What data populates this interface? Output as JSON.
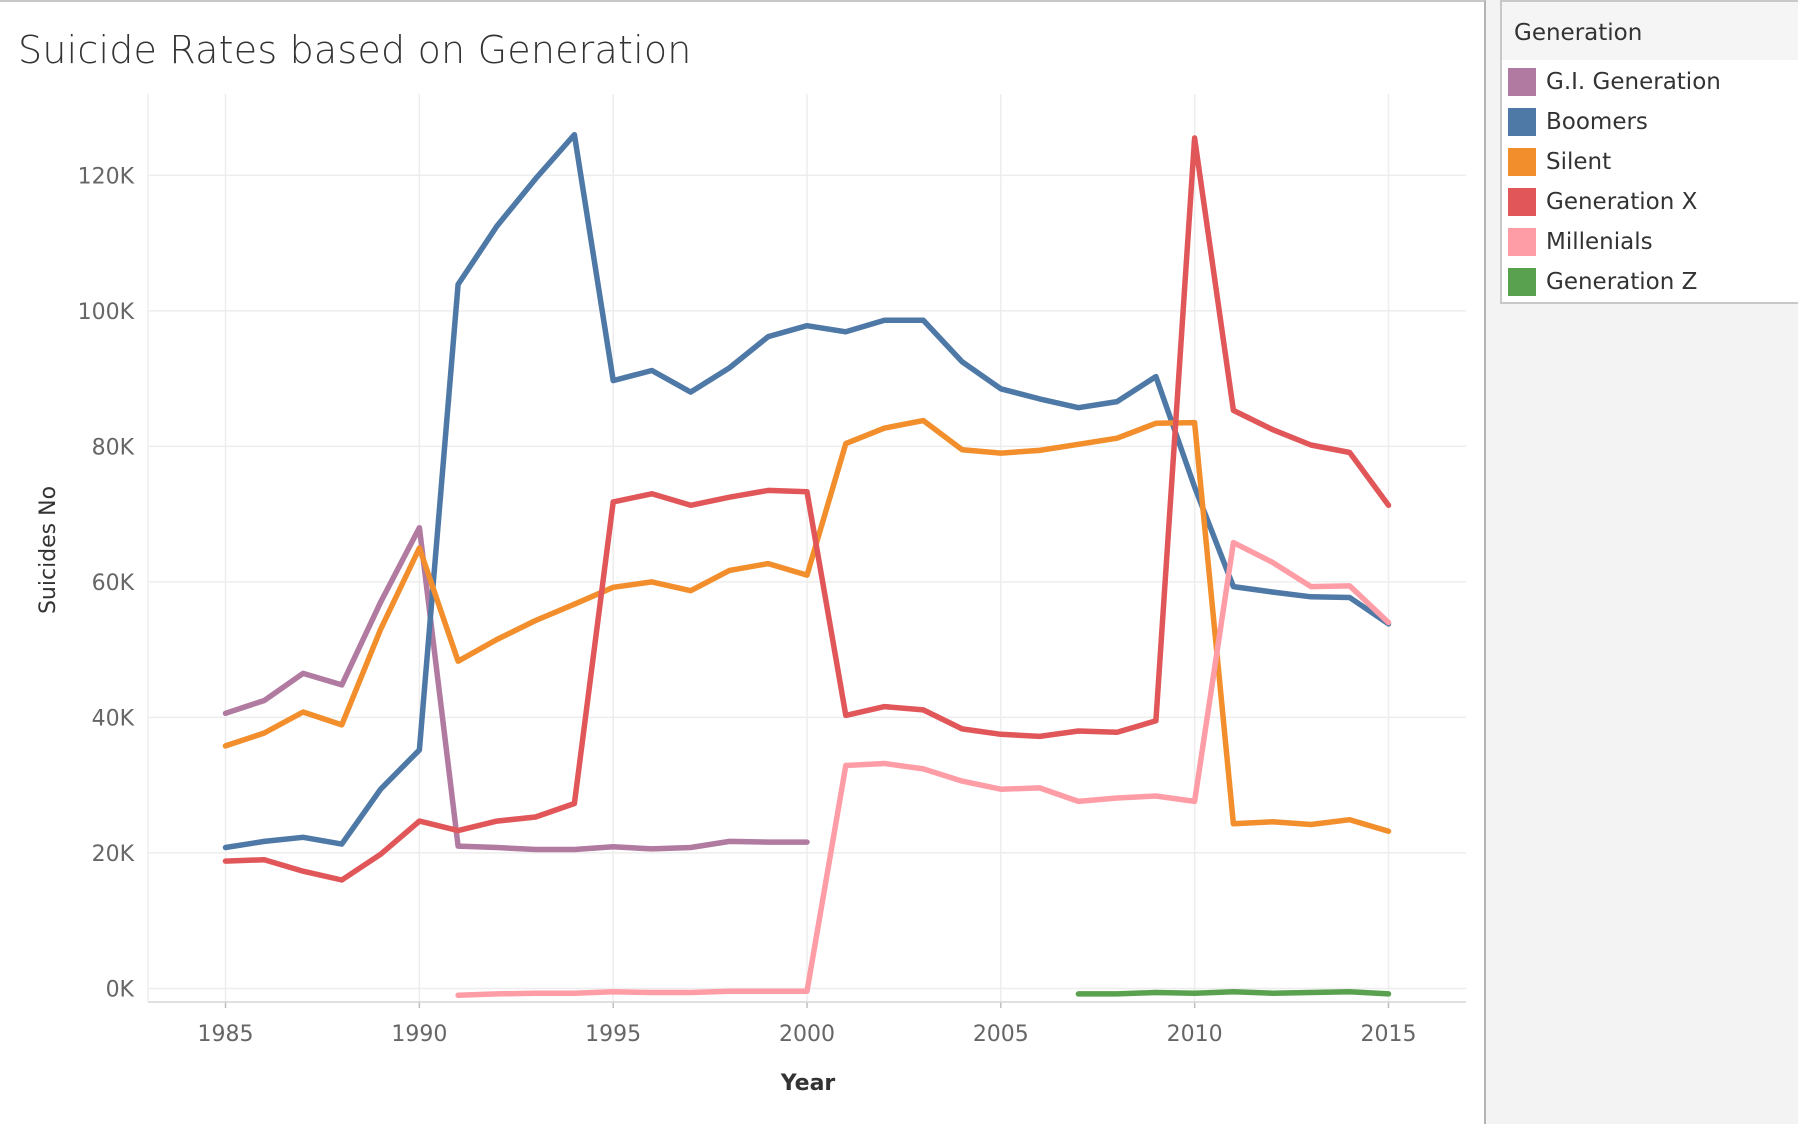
{
  "chart_data": {
    "type": "line",
    "title": "Suicide Rates based on Generation",
    "xlabel": "Year",
    "ylabel": "Suicides No",
    "xlim": [
      1983,
      2017
    ],
    "ylim": [
      -2000,
      132000
    ],
    "xticks": [
      1985,
      1990,
      1995,
      2000,
      2005,
      2010,
      2015
    ],
    "xtick_labels": [
      "1985",
      "1990",
      "1995",
      "2000",
      "2005",
      "2010",
      "2015"
    ],
    "yticks": [
      0,
      20000,
      40000,
      60000,
      80000,
      100000,
      120000
    ],
    "ytick_labels": [
      "0K",
      "20K",
      "40K",
      "60K",
      "80K",
      "100K",
      "120K"
    ],
    "grid": true,
    "legend_position": "right",
    "series": [
      {
        "name": "G.I. Generation",
        "color": "#b07aa1",
        "x": [
          1985,
          1986,
          1987,
          1988,
          1989,
          1990,
          1991,
          1992,
          1993,
          1994,
          1995,
          1996,
          1997,
          1998,
          1999,
          2000
        ],
        "y": [
          40600,
          42500,
          46500,
          44800,
          57000,
          68000,
          21000,
          20800,
          20500,
          20500,
          20900,
          20600,
          20800,
          21700,
          21600,
          21600
        ]
      },
      {
        "name": "Boomers",
        "color": "#4e79a7",
        "x": [
          1985,
          1986,
          1987,
          1988,
          1989,
          1990,
          1991,
          1992,
          1993,
          1994,
          1995,
          1996,
          1997,
          1998,
          1999,
          2000,
          2001,
          2002,
          2003,
          2004,
          2005,
          2006,
          2007,
          2008,
          2009,
          2010,
          2011,
          2012,
          2013,
          2014,
          2015
        ],
        "y": [
          20800,
          21700,
          22300,
          21300,
          29400,
          35200,
          103900,
          112500,
          119500,
          126000,
          89700,
          91200,
          88000,
          91600,
          96200,
          97800,
          96900,
          98600,
          98600,
          92500,
          88500,
          87000,
          85700,
          86600,
          90300,
          74000,
          59300,
          58500,
          57800,
          57700,
          53800
        ]
      },
      {
        "name": "Silent",
        "color": "#f28e2b",
        "x": [
          1985,
          1986,
          1987,
          1988,
          1989,
          1990,
          1991,
          1992,
          1993,
          1994,
          1995,
          1996,
          1997,
          1998,
          1999,
          2000,
          2001,
          2002,
          2003,
          2004,
          2005,
          2006,
          2007,
          2008,
          2009,
          2010,
          2011,
          2012,
          2013,
          2014,
          2015
        ],
        "y": [
          35800,
          37700,
          40800,
          38900,
          53000,
          65000,
          48300,
          51500,
          54300,
          56700,
          59200,
          60000,
          58700,
          61700,
          62700,
          61000,
          80400,
          82700,
          83800,
          79500,
          79000,
          79400,
          80300,
          81200,
          83400,
          83500,
          24300,
          24600,
          24200,
          24900,
          23200
        ]
      },
      {
        "name": "Generation X",
        "color": "#e15759",
        "x": [
          1985,
          1986,
          1987,
          1988,
          1989,
          1990,
          1991,
          1992,
          1993,
          1994,
          1995,
          1996,
          1997,
          1998,
          1999,
          2000,
          2001,
          2002,
          2003,
          2004,
          2005,
          2006,
          2007,
          2008,
          2009,
          2010,
          2011,
          2012,
          2013,
          2014,
          2015
        ],
        "y": [
          18800,
          19000,
          17300,
          16000,
          19800,
          24700,
          23300,
          24700,
          25300,
          27300,
          71800,
          73000,
          71300,
          72500,
          73500,
          73300,
          40300,
          41600,
          41100,
          38300,
          37500,
          37200,
          38000,
          37800,
          39500,
          125500,
          85300,
          82500,
          80200,
          79100,
          71300
        ]
      },
      {
        "name": "Millenials",
        "color": "#ff9da7",
        "x": [
          1991,
          1992,
          1993,
          1994,
          1995,
          1996,
          1997,
          1998,
          1999,
          2000,
          2001,
          2002,
          2003,
          2004,
          2005,
          2006,
          2007,
          2008,
          2009,
          2010,
          2011,
          2012,
          2013,
          2014,
          2015
        ],
        "y": [
          -1000,
          -800,
          -700,
          -700,
          -500,
          -600,
          -600,
          -400,
          -400,
          -400,
          32900,
          33200,
          32400,
          30600,
          29400,
          29600,
          27600,
          28100,
          28400,
          27600,
          65800,
          62900,
          59300,
          59400,
          54000
        ]
      },
      {
        "name": "Generation Z",
        "color": "#59a14f",
        "x": [
          2007,
          2008,
          2009,
          2010,
          2011,
          2012,
          2013,
          2014,
          2015
        ],
        "y": [
          -800,
          -800,
          -600,
          -700,
          -500,
          -700,
          -600,
          -500,
          -800
        ]
      }
    ]
  }
}
